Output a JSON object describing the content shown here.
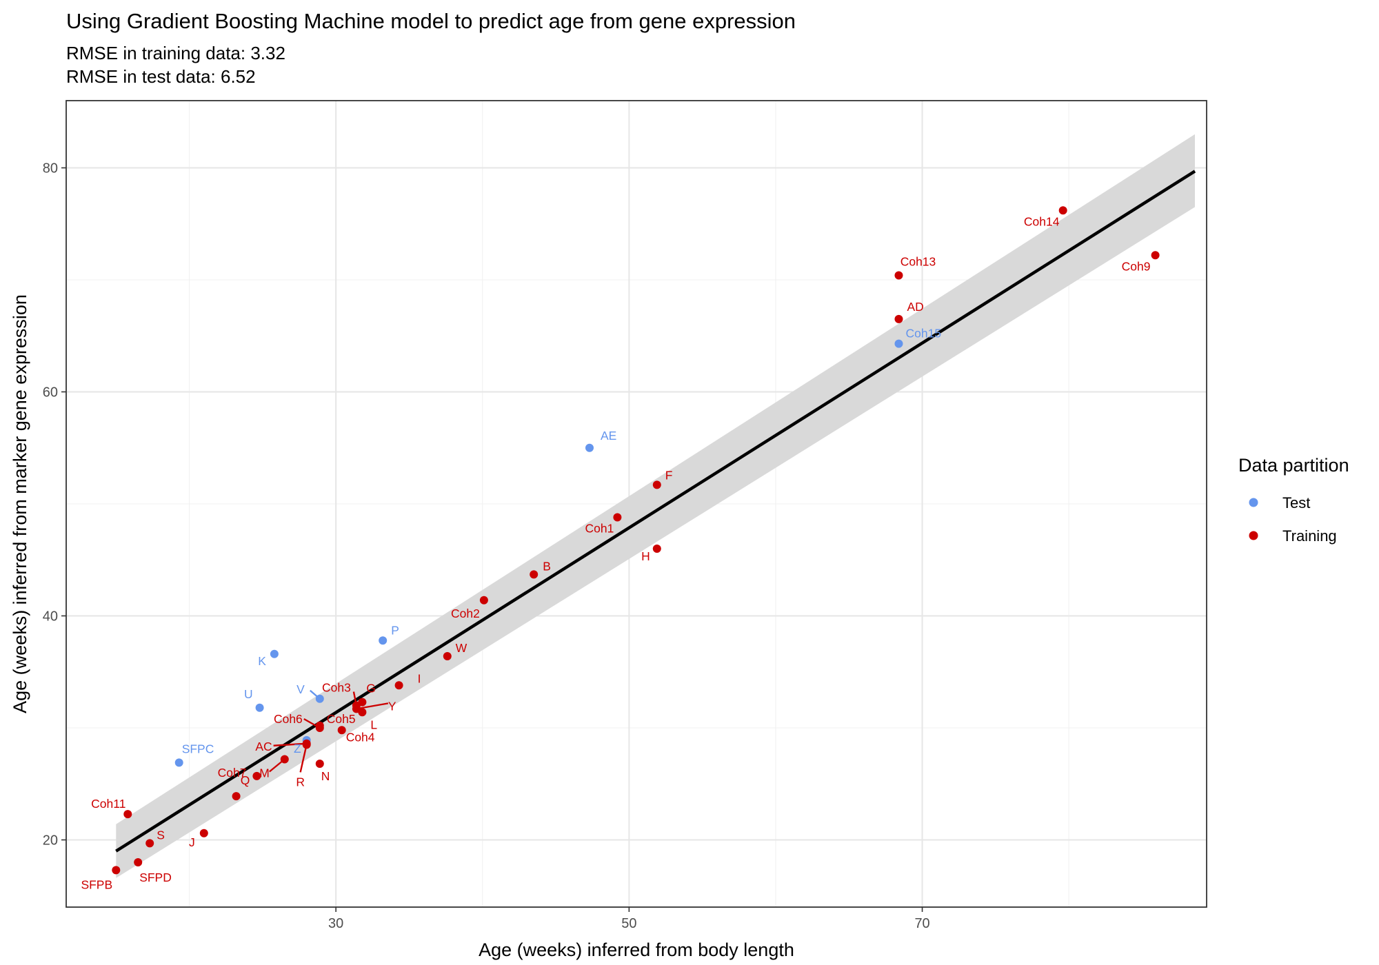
{
  "chart_data": {
    "type": "scatter",
    "title": "Using Gradient Boosting Machine model to predict age from gene expression",
    "subtitle_lines": [
      "RMSE in training data: 3.32",
      "RMSE in test data: 6.52"
    ],
    "xlabel": "Age (weeks) inferred from body length",
    "ylabel": "Age (weeks) inferred from marker gene expression",
    "xlim": [
      11.6,
      89.4
    ],
    "ylim": [
      14.0,
      86.0
    ],
    "x_ticks": [
      30,
      50,
      70
    ],
    "y_ticks": [
      20,
      40,
      60,
      80
    ],
    "grid": true,
    "legend": {
      "title": "Data partition",
      "position": "right",
      "entries": [
        {
          "name": "Test",
          "color": "#6495ED"
        },
        {
          "name": "Training",
          "color": "#CC0000"
        }
      ]
    },
    "colors": {
      "Test": "#6495ED",
      "Training": "#CC0000",
      "fit_line": "#000000",
      "ribbon": "#D9D9D9"
    },
    "fit_line": {
      "x": [
        15.0,
        88.6
      ],
      "y": [
        19.0,
        79.7
      ]
    },
    "confidence_band": {
      "x": [
        15.0,
        88.6
      ],
      "lower": [
        16.6,
        76.5
      ],
      "upper": [
        21.4,
        83.0
      ]
    },
    "series": [
      {
        "name": "Test",
        "points": [
          {
            "label": "AE",
            "x": 47.3,
            "y": 55.0
          },
          {
            "label": "Coh15",
            "x": 68.4,
            "y": 64.3
          },
          {
            "label": "P",
            "x": 33.2,
            "y": 37.8
          },
          {
            "label": "K",
            "x": 25.8,
            "y": 36.6
          },
          {
            "label": "U",
            "x": 24.8,
            "y": 31.8
          },
          {
            "label": "V",
            "x": 28.9,
            "y": 32.6
          },
          {
            "label": "Z",
            "x": 28.0,
            "y": 28.9
          },
          {
            "label": "SFPC",
            "x": 19.3,
            "y": 26.9
          }
        ]
      },
      {
        "name": "Training",
        "points": [
          {
            "label": "Coh14",
            "x": 79.6,
            "y": 76.2
          },
          {
            "label": "Coh9",
            "x": 85.9,
            "y": 72.2
          },
          {
            "label": "Coh13",
            "x": 68.4,
            "y": 70.4
          },
          {
            "label": "AD",
            "x": 68.4,
            "y": 66.5
          },
          {
            "label": "F",
            "x": 51.9,
            "y": 51.7
          },
          {
            "label": "Coh1",
            "x": 49.2,
            "y": 48.8
          },
          {
            "label": "H",
            "x": 51.9,
            "y": 46.0
          },
          {
            "label": "B",
            "x": 43.5,
            "y": 43.7
          },
          {
            "label": "Coh2",
            "x": 40.1,
            "y": 41.4
          },
          {
            "label": "W",
            "x": 37.6,
            "y": 36.4
          },
          {
            "label": "I",
            "x": 34.3,
            "y": 33.8
          },
          {
            "label": "G",
            "x": 31.8,
            "y": 32.3
          },
          {
            "label": "Coh3",
            "x": 31.4,
            "y": 32.0
          },
          {
            "label": "Y",
            "x": 31.4,
            "y": 31.7
          },
          {
            "label": "L",
            "x": 31.8,
            "y": 31.4
          },
          {
            "label": "Coh5",
            "x": 28.9,
            "y": 30.2
          },
          {
            "label": "Coh6",
            "x": 28.9,
            "y": 30.0
          },
          {
            "label": "AC",
            "x": 28.0,
            "y": 28.6
          },
          {
            "label": "Coh4",
            "x": 30.4,
            "y": 29.8
          },
          {
            "label": "N",
            "x": 28.9,
            "y": 26.8
          },
          {
            "label": "R",
            "x": 28.0,
            "y": 28.5
          },
          {
            "label": "M",
            "x": 26.5,
            "y": 27.2
          },
          {
            "label": "Q",
            "x": 24.6,
            "y": 25.7
          },
          {
            "label": "Coh7",
            "x": 23.2,
            "y": 23.9
          },
          {
            "label": "J",
            "x": 21.0,
            "y": 20.6
          },
          {
            "label": "Coh11",
            "x": 15.8,
            "y": 22.3
          },
          {
            "label": "S",
            "x": 17.3,
            "y": 19.7
          },
          {
            "label": "SFPD",
            "x": 16.5,
            "y": 18.0
          },
          {
            "label": "SFPB",
            "x": 15.0,
            "y": 17.3
          }
        ]
      }
    ]
  }
}
